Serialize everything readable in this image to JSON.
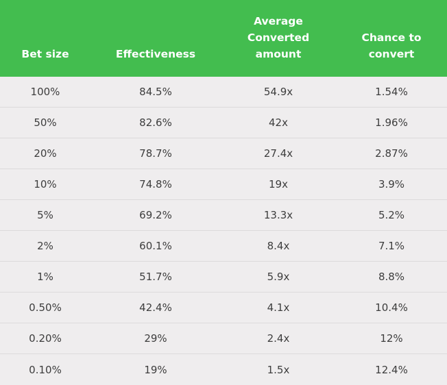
{
  "header": {
    "bet_size": "Bet size",
    "effectiveness": "Effectiveness",
    "average_converted": "Average\nConverted\namount",
    "chance": "Chance to\nconvert"
  },
  "rows": [
    {
      "bet": "100%",
      "eff": "84.5%",
      "avg": "54.9x",
      "chance": "1.54%"
    },
    {
      "bet": "50%",
      "eff": "82.6%",
      "avg": "42x",
      "chance": "1.96%"
    },
    {
      "bet": "20%",
      "eff": "78.7%",
      "avg": "27.4x",
      "chance": "2.87%"
    },
    {
      "bet": "10%",
      "eff": "74.8%",
      "avg": "19x",
      "chance": "3.9%"
    },
    {
      "bet": "5%",
      "eff": "69.2%",
      "avg": "13.3x",
      "chance": "5.2%"
    },
    {
      "bet": "2%",
      "eff": "60.1%",
      "avg": "8.4x",
      "chance": "7.1%"
    },
    {
      "bet": "1%",
      "eff": "51.7%",
      "avg": "5.9x",
      "chance": "8.8%"
    },
    {
      "bet": "0.50%",
      "eff": "42.4%",
      "avg": "4.1x",
      "chance": "10.4%"
    },
    {
      "bet": "0.20%",
      "eff": "29%",
      "avg": "2.4x",
      "chance": "12%"
    },
    {
      "bet": "0.10%",
      "eff": "19%",
      "avg": "1.5x",
      "chance": "12.4%"
    }
  ],
  "colors": {
    "header_bg": "#43bd4f",
    "body_bg": "#efedee",
    "text": "#3d3d3d"
  }
}
